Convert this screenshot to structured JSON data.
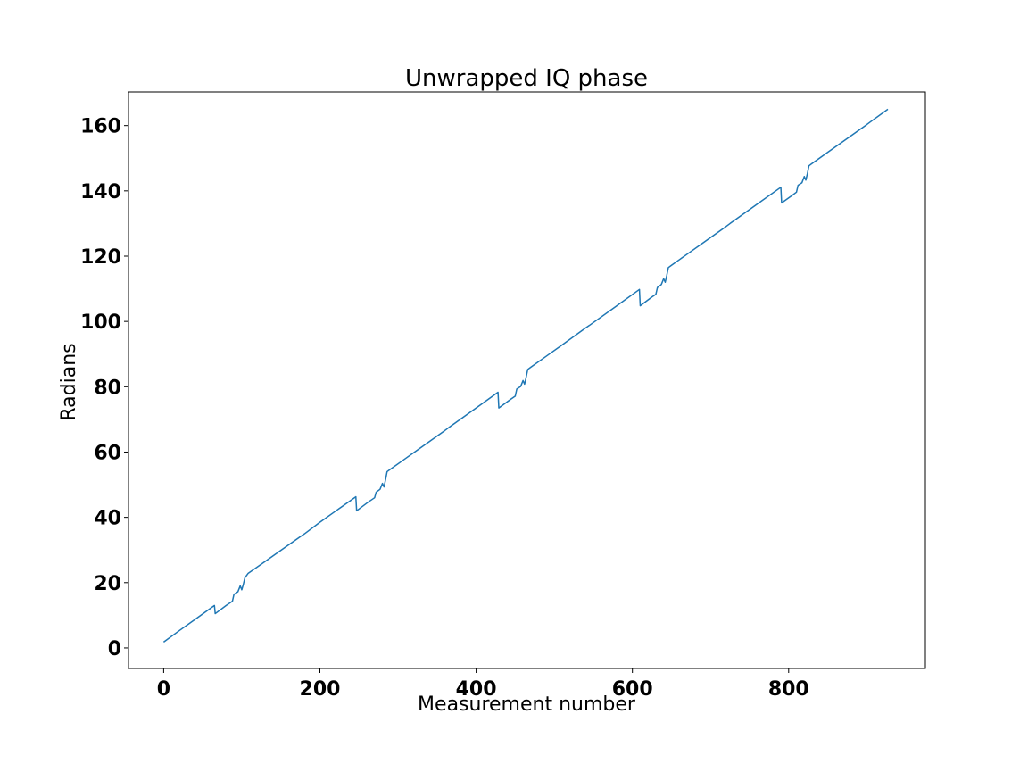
{
  "chart_data": {
    "type": "line",
    "title": "Unwrapped IQ phase",
    "xlabel": "Measurement number",
    "ylabel": "Radians",
    "xlim": [
      -45,
      975
    ],
    "ylim": [
      -6.3,
      170.3
    ],
    "xticks": [
      0,
      200,
      400,
      600,
      800
    ],
    "yticks": [
      0,
      20,
      40,
      60,
      80,
      100,
      120,
      140,
      160
    ],
    "grid": false,
    "line_color": "#1f77b4",
    "series": [
      {
        "x": [
          0,
          20,
          40,
          65,
          66,
          80,
          88,
          90,
          95,
          98,
          100,
          102,
          104,
          108,
          130,
          150,
          175,
          180,
          200,
          220,
          246,
          247,
          262,
          270,
          272,
          277,
          280,
          282,
          284,
          286,
          290,
          310,
          330,
          360,
          365,
          400,
          428,
          429,
          445,
          450,
          452,
          457,
          460,
          462,
          464,
          466,
          470,
          490,
          510,
          540,
          545,
          580,
          609,
          610,
          625,
          630,
          632,
          637,
          640,
          642,
          644,
          646,
          650,
          670,
          690,
          720,
          725,
          760,
          790,
          791,
          805,
          810,
          812,
          817,
          820,
          822,
          824,
          826,
          830,
          850,
          870,
          900,
          905,
          927
        ],
        "y": [
          1.8,
          5.3,
          8.7,
          13.0,
          10.5,
          13.0,
          14.3,
          16.4,
          17.2,
          19.0,
          17.8,
          19.5,
          21.5,
          22.8,
          26.5,
          29.9,
          34.1,
          34.9,
          38.5,
          41.9,
          46.3,
          42.0,
          44.7,
          46.0,
          47.7,
          48.6,
          50.4,
          49.3,
          51.5,
          54.0,
          54.7,
          58.1,
          61.5,
          66.6,
          67.5,
          73.5,
          78.3,
          73.5,
          76.3,
          77.1,
          79.3,
          80.1,
          81.9,
          80.8,
          82.9,
          85.3,
          86.0,
          89.4,
          92.8,
          98.0,
          98.8,
          104.8,
          109.8,
          104.8,
          107.5,
          108.3,
          110.4,
          111.3,
          113.1,
          112.0,
          114.1,
          116.5,
          117.2,
          120.6,
          124.0,
          129.1,
          130.0,
          136.0,
          141.1,
          136.3,
          138.7,
          139.6,
          141.7,
          142.5,
          144.4,
          143.3,
          145.3,
          147.7,
          148.4,
          151.8,
          155.2,
          160.3,
          161.2,
          165.0
        ]
      }
    ]
  }
}
